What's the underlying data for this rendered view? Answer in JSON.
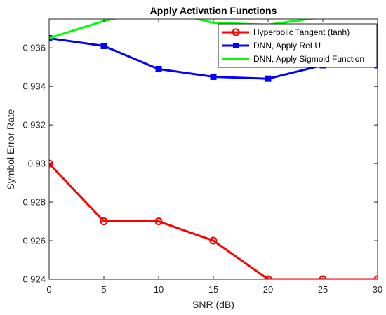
{
  "chart_data": {
    "type": "line",
    "title": "Apply Activation Functions",
    "xlabel": "SNR (dB)",
    "ylabel": "Symbol Error Rate",
    "xlim": [
      0,
      30
    ],
    "ylim": [
      0.924,
      0.9375
    ],
    "xticks": [
      "0",
      "5",
      "10",
      "15",
      "20",
      "25",
      "30"
    ],
    "yticks": [
      "0.924",
      "0.926",
      "0.928",
      "0.93",
      "0.932",
      "0.934",
      "0.936"
    ],
    "grid": false,
    "legend_position": "top-right",
    "series": [
      {
        "name": "Hyperbolic Tangent (tanh)",
        "color": "#ff0000",
        "marker": "circle",
        "x": [
          0,
          5,
          10,
          15,
          20,
          25,
          30
        ],
        "values": [
          0.93,
          0.927,
          0.927,
          0.926,
          0.924,
          0.924,
          0.924
        ]
      },
      {
        "name": "DNN, Apply ReLU",
        "color": "#0000ff",
        "marker": "square",
        "x": [
          0,
          5,
          10,
          15,
          20,
          25,
          30
        ],
        "values": [
          0.9365,
          0.9361,
          0.9349,
          0.9345,
          0.9344,
          0.9351,
          0.9351
        ]
      },
      {
        "name": "DNN, Apply Sigmoid Function",
        "color": "#00ff00",
        "marker": "none",
        "x": [
          0,
          5,
          10,
          15,
          20,
          25,
          30
        ],
        "values": [
          0.9365,
          0.9374,
          0.938,
          0.9373,
          0.9372,
          0.9376,
          0.9377
        ]
      }
    ]
  }
}
